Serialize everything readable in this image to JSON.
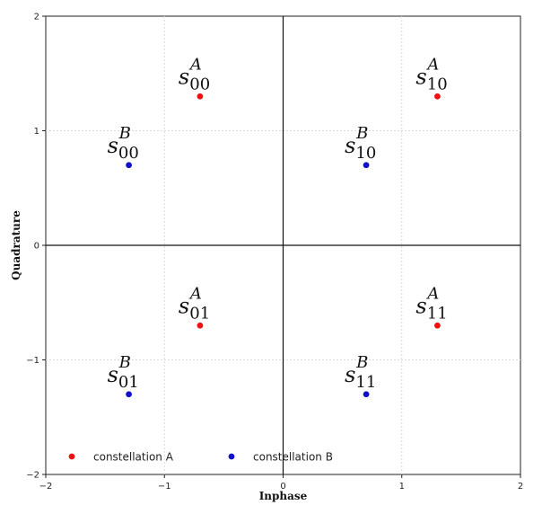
{
  "chart_data": {
    "type": "scatter",
    "xlabel": "Inphase",
    "ylabel": "Quadrature",
    "xlim": [
      -2,
      2
    ],
    "ylim": [
      -2,
      2
    ],
    "xticks": [
      -2,
      -1,
      0,
      1,
      2
    ],
    "yticks": [
      -2,
      -1,
      0,
      1,
      2
    ],
    "xtick_labels": [
      "−2",
      "−1",
      "0",
      "1",
      "2"
    ],
    "ytick_labels": [
      "−2",
      "−1",
      "0",
      "1",
      "2"
    ],
    "grid": true,
    "legend_position": "bottom-left",
    "series": [
      {
        "name": "constellation A",
        "color": "#ee1111",
        "points": [
          {
            "x": -0.7,
            "y": 1.3,
            "base": "s",
            "sub": "00",
            "sup": "A"
          },
          {
            "x": 1.3,
            "y": 1.3,
            "base": "s",
            "sub": "10",
            "sup": "A"
          },
          {
            "x": -0.7,
            "y": -0.7,
            "base": "s",
            "sub": "01",
            "sup": "A"
          },
          {
            "x": 1.3,
            "y": -0.7,
            "base": "s",
            "sub": "11",
            "sup": "A"
          }
        ]
      },
      {
        "name": "constellation B",
        "color": "#1111cc",
        "points": [
          {
            "x": -1.3,
            "y": 0.7,
            "base": "s",
            "sub": "00",
            "sup": "B"
          },
          {
            "x": 0.7,
            "y": 0.7,
            "base": "s",
            "sub": "10",
            "sup": "B"
          },
          {
            "x": -1.3,
            "y": -1.3,
            "base": "s",
            "sub": "01",
            "sup": "B"
          },
          {
            "x": 0.7,
            "y": -1.3,
            "base": "s",
            "sub": "11",
            "sup": "B"
          }
        ]
      }
    ]
  }
}
